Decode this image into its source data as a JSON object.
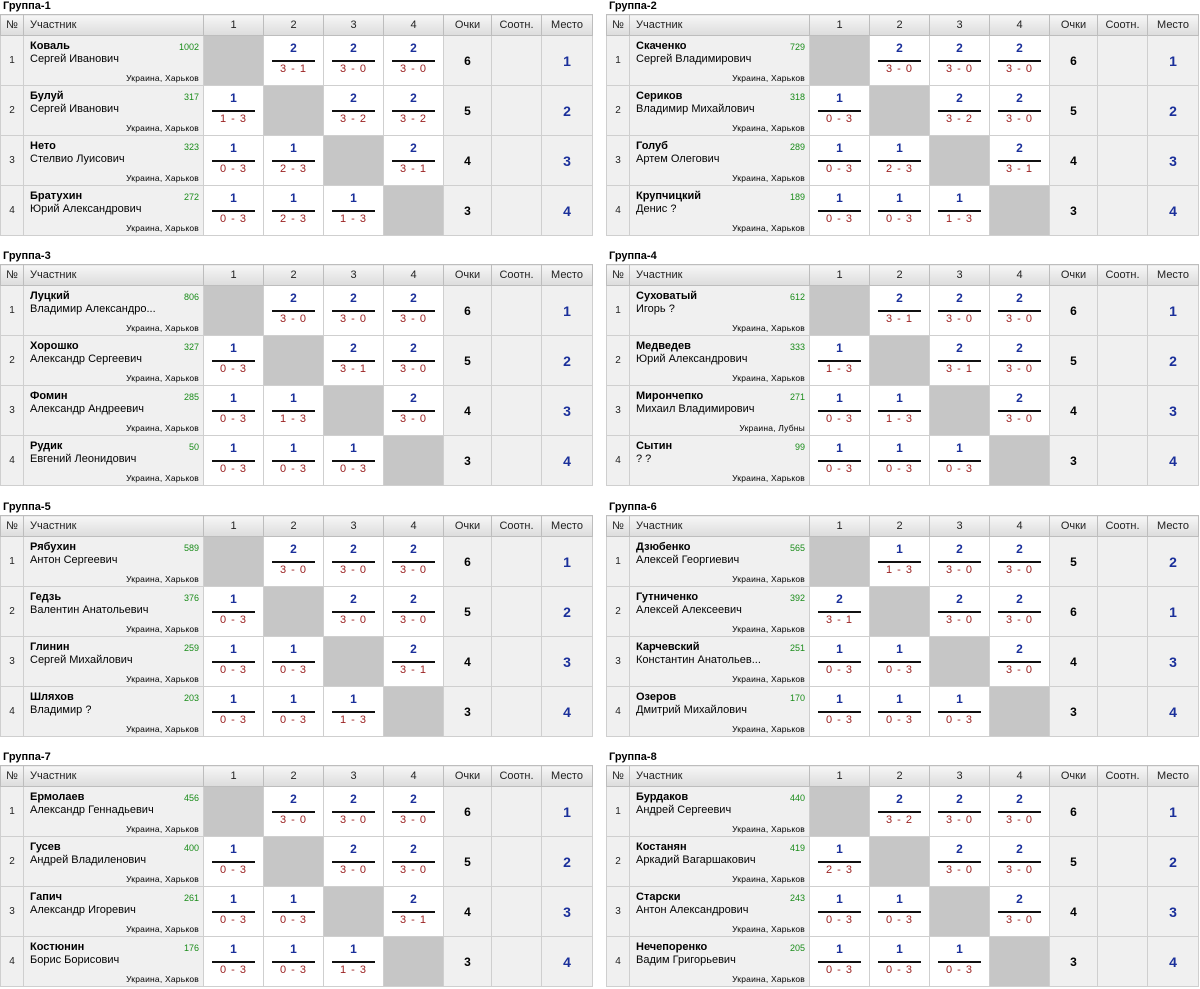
{
  "headers": {
    "num": "№",
    "participant": "Участник",
    "c1": "1",
    "c2": "2",
    "c3": "3",
    "c4": "4",
    "points": "Очки",
    "ratio": "Соотн.",
    "place": "Место"
  },
  "groups": [
    {
      "title": "Группа-1",
      "players": [
        {
          "num": "1",
          "surname": "Коваль",
          "name": "Сергей Иванович",
          "rating": "1002",
          "location": "Украина, Харьков",
          "results": [
            null,
            {
              "p": "2",
              "s": "3 - 1"
            },
            {
              "p": "2",
              "s": "3 - 0"
            },
            {
              "p": "2",
              "s": "3 - 0"
            }
          ],
          "points": "6",
          "ratio": "",
          "place": "1"
        },
        {
          "num": "2",
          "surname": "Булуй",
          "name": "Сергей Иванович",
          "rating": "317",
          "location": "Украина, Харьков",
          "results": [
            {
              "p": "1",
              "s": "1 - 3"
            },
            null,
            {
              "p": "2",
              "s": "3 - 2"
            },
            {
              "p": "2",
              "s": "3 - 2"
            }
          ],
          "points": "5",
          "ratio": "",
          "place": "2"
        },
        {
          "num": "3",
          "surname": "Нето",
          "name": "Стелвио Луисович",
          "rating": "323",
          "location": "Украина, Харьков",
          "results": [
            {
              "p": "1",
              "s": "0 - 3"
            },
            {
              "p": "1",
              "s": "2 - 3"
            },
            null,
            {
              "p": "2",
              "s": "3 - 1"
            }
          ],
          "points": "4",
          "ratio": "",
          "place": "3"
        },
        {
          "num": "4",
          "surname": "Братухин",
          "name": "Юрий Александрович",
          "rating": "272",
          "location": "Украина, Харьков",
          "results": [
            {
              "p": "1",
              "s": "0 - 3"
            },
            {
              "p": "1",
              "s": "2 - 3"
            },
            {
              "p": "1",
              "s": "1 - 3"
            },
            null
          ],
          "points": "3",
          "ratio": "",
          "place": "4"
        }
      ]
    },
    {
      "title": "Группа-2",
      "players": [
        {
          "num": "1",
          "surname": "Скаченко",
          "name": "Сергей Владимирович",
          "rating": "729",
          "location": "Украина, Харьков",
          "results": [
            null,
            {
              "p": "2",
              "s": "3 - 0"
            },
            {
              "p": "2",
              "s": "3 - 0"
            },
            {
              "p": "2",
              "s": "3 - 0"
            }
          ],
          "points": "6",
          "ratio": "",
          "place": "1"
        },
        {
          "num": "2",
          "surname": "Сериков",
          "name": "Владимир Михайлович",
          "rating": "318",
          "location": "Украина, Харьков",
          "results": [
            {
              "p": "1",
              "s": "0 - 3"
            },
            null,
            {
              "p": "2",
              "s": "3 - 2"
            },
            {
              "p": "2",
              "s": "3 - 0"
            }
          ],
          "points": "5",
          "ratio": "",
          "place": "2"
        },
        {
          "num": "3",
          "surname": "Голуб",
          "name": "Артем Олегович",
          "rating": "289",
          "location": "Украина, Харьков",
          "results": [
            {
              "p": "1",
              "s": "0 - 3"
            },
            {
              "p": "1",
              "s": "2 - 3"
            },
            null,
            {
              "p": "2",
              "s": "3 - 1"
            }
          ],
          "points": "4",
          "ratio": "",
          "place": "3"
        },
        {
          "num": "4",
          "surname": "Крупчицкий",
          "name": "Денис ?",
          "rating": "189",
          "location": "Украина, Харьков",
          "results": [
            {
              "p": "1",
              "s": "0 - 3"
            },
            {
              "p": "1",
              "s": "0 - 3"
            },
            {
              "p": "1",
              "s": "1 - 3"
            },
            null
          ],
          "points": "3",
          "ratio": "",
          "place": "4"
        }
      ]
    },
    {
      "title": "Группа-3",
      "players": [
        {
          "num": "1",
          "surname": "Луцкий",
          "name": "Владимир Александро...",
          "rating": "806",
          "location": "Украина, Харьков",
          "results": [
            null,
            {
              "p": "2",
              "s": "3 - 0"
            },
            {
              "p": "2",
              "s": "3 - 0"
            },
            {
              "p": "2",
              "s": "3 - 0"
            }
          ],
          "points": "6",
          "ratio": "",
          "place": "1"
        },
        {
          "num": "2",
          "surname": "Хорошко",
          "name": "Александр Сергеевич",
          "rating": "327",
          "location": "Украина, Харьков",
          "results": [
            {
              "p": "1",
              "s": "0 - 3"
            },
            null,
            {
              "p": "2",
              "s": "3 - 1"
            },
            {
              "p": "2",
              "s": "3 - 0"
            }
          ],
          "points": "5",
          "ratio": "",
          "place": "2"
        },
        {
          "num": "3",
          "surname": "Фомин",
          "name": "Александр Андреевич",
          "rating": "285",
          "location": "Украина, Харьков",
          "results": [
            {
              "p": "1",
              "s": "0 - 3"
            },
            {
              "p": "1",
              "s": "1 - 3"
            },
            null,
            {
              "p": "2",
              "s": "3 - 0"
            }
          ],
          "points": "4",
          "ratio": "",
          "place": "3"
        },
        {
          "num": "4",
          "surname": "Рудик",
          "name": "Евгений Леонидович",
          "rating": "50",
          "location": "Украина, Харьков",
          "results": [
            {
              "p": "1",
              "s": "0 - 3"
            },
            {
              "p": "1",
              "s": "0 - 3"
            },
            {
              "p": "1",
              "s": "0 - 3"
            },
            null
          ],
          "points": "3",
          "ratio": "",
          "place": "4"
        }
      ]
    },
    {
      "title": "Группа-4",
      "players": [
        {
          "num": "1",
          "surname": "Суховатый",
          "name": "Игорь ?",
          "rating": "612",
          "location": "Украина, Харьков",
          "results": [
            null,
            {
              "p": "2",
              "s": "3 - 1"
            },
            {
              "p": "2",
              "s": "3 - 0"
            },
            {
              "p": "2",
              "s": "3 - 0"
            }
          ],
          "points": "6",
          "ratio": "",
          "place": "1"
        },
        {
          "num": "2",
          "surname": "Медведев",
          "name": "Юрий Александрович",
          "rating": "333",
          "location": "Украина, Харьков",
          "results": [
            {
              "p": "1",
              "s": "1 - 3"
            },
            null,
            {
              "p": "2",
              "s": "3 - 1"
            },
            {
              "p": "2",
              "s": "3 - 0"
            }
          ],
          "points": "5",
          "ratio": "",
          "place": "2"
        },
        {
          "num": "3",
          "surname": "Мирончепко",
          "name": "Михаил Владимирович",
          "rating": "271",
          "location": "Украина, Лубны",
          "results": [
            {
              "p": "1",
              "s": "0 - 3"
            },
            {
              "p": "1",
              "s": "1 - 3"
            },
            null,
            {
              "p": "2",
              "s": "3 - 0"
            }
          ],
          "points": "4",
          "ratio": "",
          "place": "3"
        },
        {
          "num": "4",
          "surname": "Сытин",
          "name": "? ?",
          "rating": "99",
          "location": "Украина, Харьков",
          "results": [
            {
              "p": "1",
              "s": "0 - 3"
            },
            {
              "p": "1",
              "s": "0 - 3"
            },
            {
              "p": "1",
              "s": "0 - 3"
            },
            null
          ],
          "points": "3",
          "ratio": "",
          "place": "4"
        }
      ]
    },
    {
      "title": "Группа-5",
      "players": [
        {
          "num": "1",
          "surname": "Рябухин",
          "name": "Антон Сергеевич",
          "rating": "589",
          "location": "Украина, Харьков",
          "results": [
            null,
            {
              "p": "2",
              "s": "3 - 0"
            },
            {
              "p": "2",
              "s": "3 - 0"
            },
            {
              "p": "2",
              "s": "3 - 0"
            }
          ],
          "points": "6",
          "ratio": "",
          "place": "1"
        },
        {
          "num": "2",
          "surname": "Гедзь",
          "name": "Валентин Анатольевич",
          "rating": "376",
          "location": "Украина, Харьков",
          "results": [
            {
              "p": "1",
              "s": "0 - 3"
            },
            null,
            {
              "p": "2",
              "s": "3 - 0"
            },
            {
              "p": "2",
              "s": "3 - 0"
            }
          ],
          "points": "5",
          "ratio": "",
          "place": "2"
        },
        {
          "num": "3",
          "surname": "Глинин",
          "name": "Сергей Михайлович",
          "rating": "259",
          "location": "Украина, Харьков",
          "results": [
            {
              "p": "1",
              "s": "0 - 3"
            },
            {
              "p": "1",
              "s": "0 - 3"
            },
            null,
            {
              "p": "2",
              "s": "3 - 1"
            }
          ],
          "points": "4",
          "ratio": "",
          "place": "3"
        },
        {
          "num": "4",
          "surname": "Шляхов",
          "name": "Владимир ?",
          "rating": "203",
          "location": "Украина, Харьков",
          "results": [
            {
              "p": "1",
              "s": "0 - 3"
            },
            {
              "p": "1",
              "s": "0 - 3"
            },
            {
              "p": "1",
              "s": "1 - 3"
            },
            null
          ],
          "points": "3",
          "ratio": "",
          "place": "4"
        }
      ]
    },
    {
      "title": "Группа-6",
      "players": [
        {
          "num": "1",
          "surname": "Дзюбенко",
          "name": "Алексей Георгиевич",
          "rating": "565",
          "location": "Украина, Харьков",
          "results": [
            null,
            {
              "p": "1",
              "s": "1 - 3"
            },
            {
              "p": "2",
              "s": "3 - 0"
            },
            {
              "p": "2",
              "s": "3 - 0"
            }
          ],
          "points": "5",
          "ratio": "",
          "place": "2"
        },
        {
          "num": "2",
          "surname": "Гутниченко",
          "name": "Алексей Алексеевич",
          "rating": "392",
          "location": "Украина, Харьков",
          "results": [
            {
              "p": "2",
              "s": "3 - 1"
            },
            null,
            {
              "p": "2",
              "s": "3 - 0"
            },
            {
              "p": "2",
              "s": "3 - 0"
            }
          ],
          "points": "6",
          "ratio": "",
          "place": "1"
        },
        {
          "num": "3",
          "surname": "Карчевский",
          "name": "Константин Анатольев...",
          "rating": "251",
          "location": "Украина, Харьков",
          "results": [
            {
              "p": "1",
              "s": "0 - 3"
            },
            {
              "p": "1",
              "s": "0 - 3"
            },
            null,
            {
              "p": "2",
              "s": "3 - 0"
            }
          ],
          "points": "4",
          "ratio": "",
          "place": "3"
        },
        {
          "num": "4",
          "surname": "Озеров",
          "name": "Дмитрий Михайлович",
          "rating": "170",
          "location": "Украина, Харьков",
          "results": [
            {
              "p": "1",
              "s": "0 - 3"
            },
            {
              "p": "1",
              "s": "0 - 3"
            },
            {
              "p": "1",
              "s": "0 - 3"
            },
            null
          ],
          "points": "3",
          "ratio": "",
          "place": "4"
        }
      ]
    },
    {
      "title": "Группа-7",
      "players": [
        {
          "num": "1",
          "surname": "Ермолаев",
          "name": "Александр Геннадьевич",
          "rating": "456",
          "location": "Украина, Харьков",
          "results": [
            null,
            {
              "p": "2",
              "s": "3 - 0"
            },
            {
              "p": "2",
              "s": "3 - 0"
            },
            {
              "p": "2",
              "s": "3 - 0"
            }
          ],
          "points": "6",
          "ratio": "",
          "place": "1"
        },
        {
          "num": "2",
          "surname": "Гусев",
          "name": "Андрей Владиленович",
          "rating": "400",
          "location": "Украина, Харьков",
          "results": [
            {
              "p": "1",
              "s": "0 - 3"
            },
            null,
            {
              "p": "2",
              "s": "3 - 0"
            },
            {
              "p": "2",
              "s": "3 - 0"
            }
          ],
          "points": "5",
          "ratio": "",
          "place": "2"
        },
        {
          "num": "3",
          "surname": "Гапич",
          "name": "Александр Игоревич",
          "rating": "261",
          "location": "Украина, Харьков",
          "results": [
            {
              "p": "1",
              "s": "0 - 3"
            },
            {
              "p": "1",
              "s": "0 - 3"
            },
            null,
            {
              "p": "2",
              "s": "3 - 1"
            }
          ],
          "points": "4",
          "ratio": "",
          "place": "3"
        },
        {
          "num": "4",
          "surname": "Костюнин",
          "name": "Борис Борисович",
          "rating": "176",
          "location": "Украина, Харьков",
          "results": [
            {
              "p": "1",
              "s": "0 - 3"
            },
            {
              "p": "1",
              "s": "0 - 3"
            },
            {
              "p": "1",
              "s": "1 - 3"
            },
            null
          ],
          "points": "3",
          "ratio": "",
          "place": "4"
        }
      ]
    },
    {
      "title": "Группа-8",
      "players": [
        {
          "num": "1",
          "surname": "Бурдаков",
          "name": "Андрей Сергеевич",
          "rating": "440",
          "location": "Украина, Харьков",
          "results": [
            null,
            {
              "p": "2",
              "s": "3 - 2"
            },
            {
              "p": "2",
              "s": "3 - 0"
            },
            {
              "p": "2",
              "s": "3 - 0"
            }
          ],
          "points": "6",
          "ratio": "",
          "place": "1"
        },
        {
          "num": "2",
          "surname": "Костанян",
          "name": "Аркадий Вагаршакович",
          "rating": "419",
          "location": "Украина, Харьков",
          "results": [
            {
              "p": "1",
              "s": "2 - 3"
            },
            null,
            {
              "p": "2",
              "s": "3 - 0"
            },
            {
              "p": "2",
              "s": "3 - 0"
            }
          ],
          "points": "5",
          "ratio": "",
          "place": "2"
        },
        {
          "num": "3",
          "surname": "Старски",
          "name": "Антон Александрович",
          "rating": "243",
          "location": "Украина, Харьков",
          "results": [
            {
              "p": "1",
              "s": "0 - 3"
            },
            {
              "p": "1",
              "s": "0 - 3"
            },
            null,
            {
              "p": "2",
              "s": "3 - 0"
            }
          ],
          "points": "4",
          "ratio": "",
          "place": "3"
        },
        {
          "num": "4",
          "surname": "Нечепоренко",
          "name": "Вадим Григорьевич",
          "rating": "205",
          "location": "Украина, Харьков",
          "results": [
            {
              "p": "1",
              "s": "0 - 3"
            },
            {
              "p": "1",
              "s": "0 - 3"
            },
            {
              "p": "1",
              "s": "0 - 3"
            },
            null
          ],
          "points": "3",
          "ratio": "",
          "place": "4"
        }
      ]
    }
  ]
}
